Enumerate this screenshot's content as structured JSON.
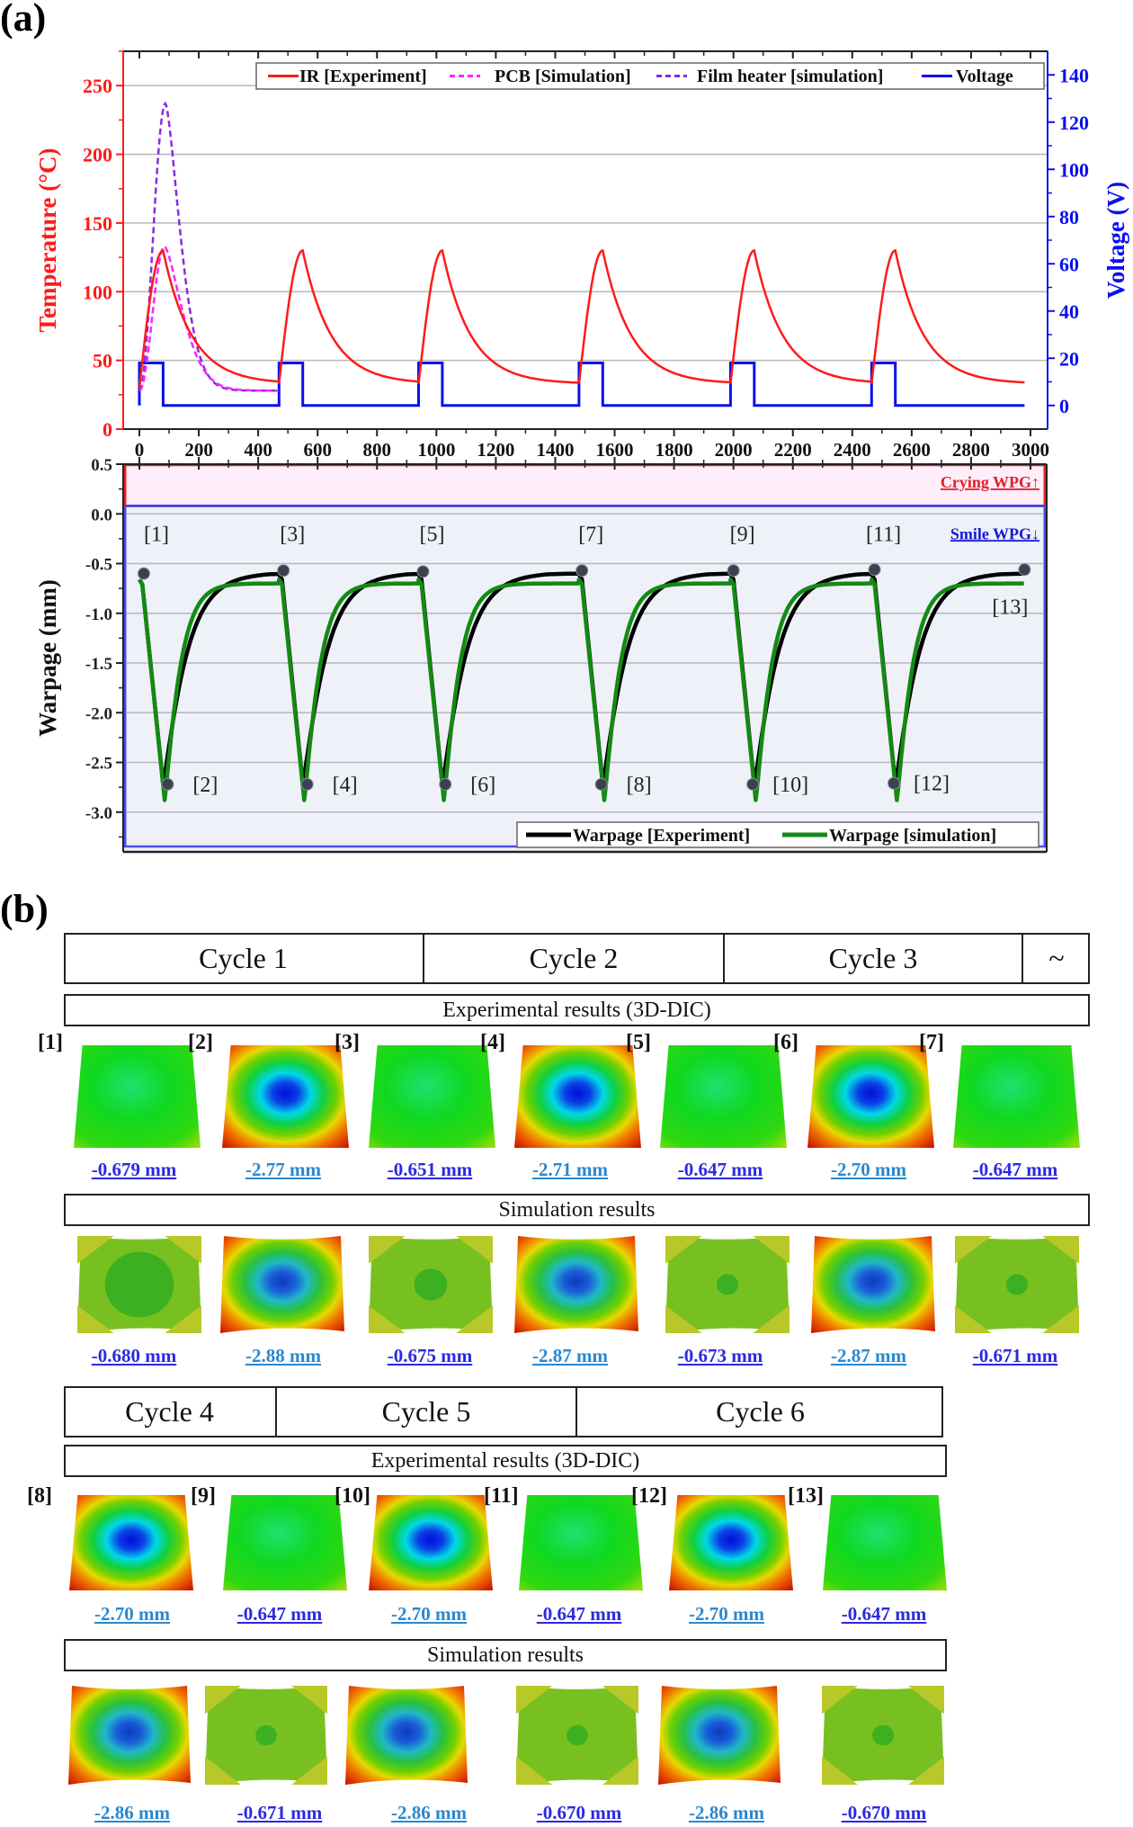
{
  "panel_labels": {
    "a": "(a)",
    "b": "(b)"
  },
  "colors": {
    "ir": "#ff1a1a",
    "pcb": "#ff22ff",
    "film": "#8a2be2",
    "voltage": "#0a10ee",
    "warp_exp": "#000000",
    "warp_sim": "#138a13",
    "crying_bg": "#fdeefa",
    "smile_bg": "#eef1f8",
    "marker": "#3a4252",
    "label_low": "#2a2ae0",
    "label_high": "#2a88d0"
  },
  "chart_data": [
    {
      "type": "line",
      "title": "",
      "xlabel": "",
      "ylabel": "Temperature (°C)",
      "y2label": "Voltage (V)",
      "xlim": [
        -50,
        3050
      ],
      "ylim": [
        0,
        275
      ],
      "y2lim": [
        -10,
        150
      ],
      "xticks": [
        0,
        200,
        400,
        600,
        800,
        1000,
        1200,
        1400,
        1600,
        1800,
        2000,
        2200,
        2400,
        2600,
        2800,
        3000
      ],
      "yticks": [
        0,
        50,
        100,
        150,
        200,
        250
      ],
      "y2ticks": [
        0,
        20,
        40,
        60,
        80,
        100,
        120,
        140
      ],
      "grid": true,
      "legend_position": "top",
      "cycle_starts": [
        0,
        470,
        940,
        1480,
        1990,
        2465
      ],
      "heat_duration": 80,
      "cycle_end": 2980,
      "series": [
        {
          "name": "IR  [Experiment]",
          "style": "solid",
          "axis": "left",
          "color_key": "ir",
          "peak": 130,
          "base": 33,
          "start": 30,
          "peak_time_offset": 80
        },
        {
          "name": "PCB  [Simulation]",
          "style": "dashed",
          "axis": "left",
          "color_key": "pcb",
          "peak": 133,
          "base": 28,
          "start": 28,
          "range": [
            0,
            470
          ]
        },
        {
          "name": "Film heater  [simulation]",
          "style": "dashed",
          "axis": "left",
          "color_key": "film",
          "peak": 237,
          "base": 28,
          "start": 28,
          "range": [
            0,
            470
          ]
        },
        {
          "name": "Voltage",
          "style": "solid",
          "axis": "right",
          "color_key": "voltage",
          "high": 18,
          "low": 0
        }
      ]
    },
    {
      "type": "line",
      "title": "",
      "xlabel": "",
      "ylabel": "Warpage (mm)",
      "xlim": [
        -50,
        3050
      ],
      "ylim": [
        -3.4,
        0.5
      ],
      "yticks": [
        0.5,
        0.0,
        -0.5,
        -1.0,
        -1.5,
        -2.0,
        -2.5,
        -3.0
      ],
      "yticklabels": [
        "0.5",
        "0.0",
        "-0.5",
        "-1.0",
        "-1.5",
        "-2.0",
        "-2.5",
        "-3.0"
      ],
      "grid": true,
      "legend_position": "bottom-right",
      "regions": [
        {
          "label": "Crying WPG↑",
          "from": 0.08,
          "to": 0.5,
          "color_key": "crying_bg",
          "text_color": "#e0202a"
        },
        {
          "label": "Smile WPG↓",
          "from": -3.4,
          "to": 0.08,
          "color_key": "smile_bg",
          "text_color": "#1818d8"
        }
      ],
      "series": [
        {
          "name": "Warpage [Experiment]",
          "color_key": "warp_exp",
          "min": -2.72,
          "plateau": -0.65
        },
        {
          "name": "Warpage [simulation]",
          "color_key": "warp_sim",
          "min": -2.88,
          "plateau": -0.7
        }
      ],
      "markers": [
        {
          "label": "[1]",
          "x": 15,
          "y": -0.6
        },
        {
          "label": "[2]",
          "x": 95,
          "y": -2.72
        },
        {
          "label": "[3]",
          "x": 485,
          "y": -0.57
        },
        {
          "label": "[4]",
          "x": 565,
          "y": -2.72
        },
        {
          "label": "[5]",
          "x": 955,
          "y": -0.58
        },
        {
          "label": "[6]",
          "x": 1030,
          "y": -2.72
        },
        {
          "label": "[7]",
          "x": 1490,
          "y": -0.57
        },
        {
          "label": "[8]",
          "x": 1555,
          "y": -2.72
        },
        {
          "label": "[9]",
          "x": 2000,
          "y": -0.57
        },
        {
          "label": "[10]",
          "x": 2065,
          "y": -2.72
        },
        {
          "label": "[11]",
          "x": 2475,
          "y": -0.56
        },
        {
          "label": "[12]",
          "x": 2540,
          "y": -2.71
        },
        {
          "label": "[13]",
          "x": 2980,
          "y": -0.56
        }
      ]
    }
  ],
  "panel_b": {
    "row1": {
      "cycles": [
        "Cycle 1",
        "Cycle 2",
        "Cycle 3",
        "~"
      ],
      "experimental_header": "Experimental results (3D-DIC)",
      "simulation_header": "Simulation results",
      "experimental": [
        {
          "index": "[1]",
          "value": "-0.679 mm",
          "state": "low"
        },
        {
          "index": "[2]",
          "value": "-2.77 mm",
          "state": "high"
        },
        {
          "index": "[3]",
          "value": "-0.651 mm",
          "state": "low"
        },
        {
          "index": "[4]",
          "value": "-2.71 mm",
          "state": "high"
        },
        {
          "index": "[5]",
          "value": "-0.647 mm",
          "state": "low"
        },
        {
          "index": "[6]",
          "value": "-2.70 mm",
          "state": "high"
        },
        {
          "index": "[7]",
          "value": "-0.647 mm",
          "state": "low"
        }
      ],
      "simulation": [
        {
          "value": "-0.680 mm",
          "state": "low",
          "spot": "large"
        },
        {
          "value": "-2.88 mm",
          "state": "high"
        },
        {
          "value": "-0.675 mm",
          "state": "low",
          "spot": "medium"
        },
        {
          "value": "-2.87 mm",
          "state": "high"
        },
        {
          "value": "-0.673 mm",
          "state": "low",
          "spot": "small"
        },
        {
          "value": "-2.87 mm",
          "state": "high"
        },
        {
          "value": "-0.671 mm",
          "state": "low",
          "spot": "small"
        }
      ]
    },
    "row2": {
      "cycles": [
        "Cycle 4",
        "Cycle 5",
        "Cycle 6"
      ],
      "experimental_header": "Experimental results (3D-DIC)",
      "simulation_header": "Simulation results",
      "experimental": [
        {
          "index": "[8]",
          "value": "-2.70 mm",
          "state": "high"
        },
        {
          "index": "[9]",
          "value": "-0.647 mm",
          "state": "low"
        },
        {
          "index": "[10]",
          "value": "-2.70 mm",
          "state": "high"
        },
        {
          "index": "[11]",
          "value": "-0.647 mm",
          "state": "low"
        },
        {
          "index": "[12]",
          "value": "-2.70 mm",
          "state": "high"
        },
        {
          "index": "[13]",
          "value": "-0.647 mm",
          "state": "low"
        }
      ],
      "simulation": [
        {
          "value": "-2.86 mm",
          "state": "high"
        },
        {
          "value": "-0.671 mm",
          "state": "low",
          "spot": "small"
        },
        {
          "value": "-2.86 mm",
          "state": "high"
        },
        {
          "value": "-0.670 mm",
          "state": "low",
          "spot": "small"
        },
        {
          "value": "-2.86 mm",
          "state": "high"
        },
        {
          "value": "-0.670 mm",
          "state": "low",
          "spot": "small"
        }
      ]
    }
  }
}
